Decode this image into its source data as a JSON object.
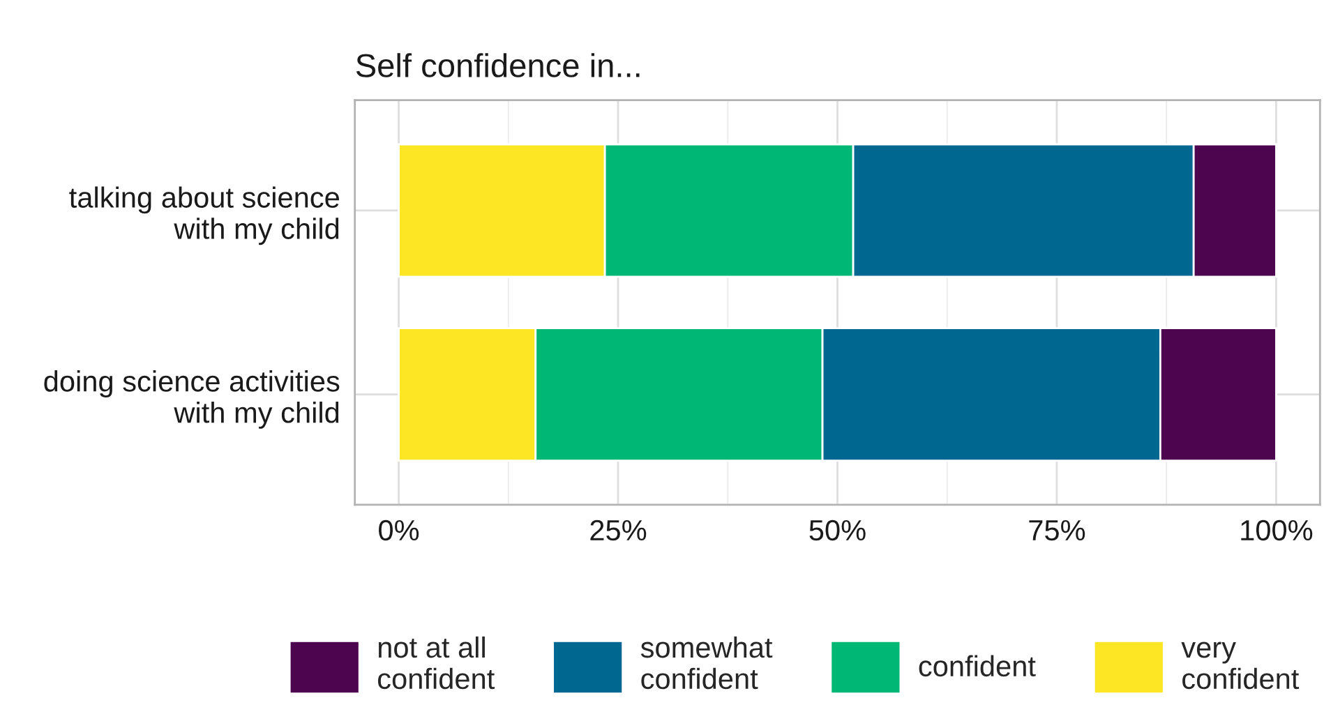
{
  "chart_data": {
    "type": "bar",
    "orientation": "horizontal",
    "stacked": true,
    "title": "Self confidence in...",
    "categories": [
      "talking about science\nwith my child",
      "doing science activities\nwith my child"
    ],
    "series": [
      {
        "name": "very\nconfident",
        "color": "#fde725",
        "values": [
          23.5,
          15.6
        ]
      },
      {
        "name": "confident",
        "color": "#00b775",
        "values": [
          28.3,
          32.7
        ]
      },
      {
        "name": "somewhat\nconfident",
        "color": "#006791",
        "values": [
          38.8,
          38.5
        ]
      },
      {
        "name": "not at all\nconfident",
        "color": "#4d0550",
        "values": [
          9.4,
          13.2
        ]
      }
    ],
    "xlim": [
      -5,
      105
    ],
    "xticks": [
      {
        "value": 0,
        "label": "0%"
      },
      {
        "value": 25,
        "label": "25%"
      },
      {
        "value": 50,
        "label": "50%"
      },
      {
        "value": 75,
        "label": "75%"
      },
      {
        "value": 100,
        "label": "100%"
      }
    ],
    "grid": true,
    "legend": "bottom"
  }
}
